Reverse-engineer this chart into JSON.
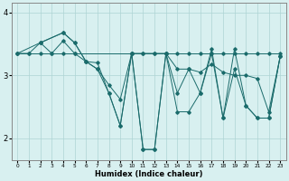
{
  "xlabel": "Humidex (Indice chaleur)",
  "xlim": [
    -0.5,
    23.5
  ],
  "ylim": [
    1.65,
    4.15
  ],
  "yticks": [
    2,
    3,
    4
  ],
  "xticks": [
    0,
    1,
    2,
    3,
    4,
    5,
    6,
    7,
    8,
    9,
    10,
    11,
    12,
    13,
    14,
    15,
    16,
    17,
    18,
    19,
    20,
    21,
    22,
    23
  ],
  "bg_color": "#d8f0f0",
  "grid_color": "#aed4d4",
  "line_color": "#1a6b6b",
  "line1_x": [
    0,
    1,
    2,
    3,
    4,
    5,
    10,
    11,
    12,
    13,
    14,
    15,
    16,
    17,
    18,
    19,
    20,
    21,
    22,
    23
  ],
  "line1_y": [
    3.35,
    3.35,
    3.35,
    3.35,
    3.35,
    3.35,
    3.35,
    3.35,
    3.35,
    3.35,
    3.35,
    3.35,
    3.35,
    3.35,
    3.35,
    3.35,
    3.35,
    3.35,
    3.35,
    3.35
  ],
  "line2_x": [
    2,
    4,
    5,
    6,
    7,
    8,
    9,
    10,
    11,
    12,
    13,
    14,
    15,
    16,
    17,
    18,
    19,
    20,
    21,
    22,
    23
  ],
  "line2_y": [
    3.52,
    3.68,
    3.52,
    3.22,
    3.2,
    2.72,
    2.2,
    3.35,
    1.82,
    1.82,
    3.35,
    2.72,
    3.1,
    2.72,
    3.42,
    2.32,
    3.42,
    2.52,
    2.32,
    2.32,
    3.3
  ],
  "line3_x": [
    0,
    2,
    4,
    5,
    6,
    7,
    8,
    9,
    10,
    11,
    12,
    13,
    14,
    15,
    16,
    17,
    18,
    19,
    20,
    21,
    22,
    23
  ],
  "line3_y": [
    3.35,
    3.52,
    3.68,
    3.52,
    3.22,
    3.1,
    2.72,
    2.2,
    3.35,
    1.82,
    1.82,
    3.35,
    2.42,
    2.42,
    2.72,
    3.35,
    2.32,
    3.1,
    2.52,
    2.32,
    2.32,
    3.3
  ],
  "line4_x": [
    0,
    1,
    2,
    3,
    4,
    5,
    6,
    7,
    8,
    9,
    10,
    11,
    12,
    13,
    14,
    15,
    16,
    17,
    18,
    19,
    20,
    21,
    22,
    23
  ],
  "line4_y": [
    3.35,
    3.35,
    3.52,
    3.35,
    3.55,
    3.35,
    3.22,
    3.1,
    2.85,
    2.62,
    3.35,
    3.35,
    3.35,
    3.35,
    3.1,
    3.1,
    3.05,
    3.18,
    3.05,
    3.0,
    3.0,
    2.95,
    2.42,
    3.3
  ]
}
